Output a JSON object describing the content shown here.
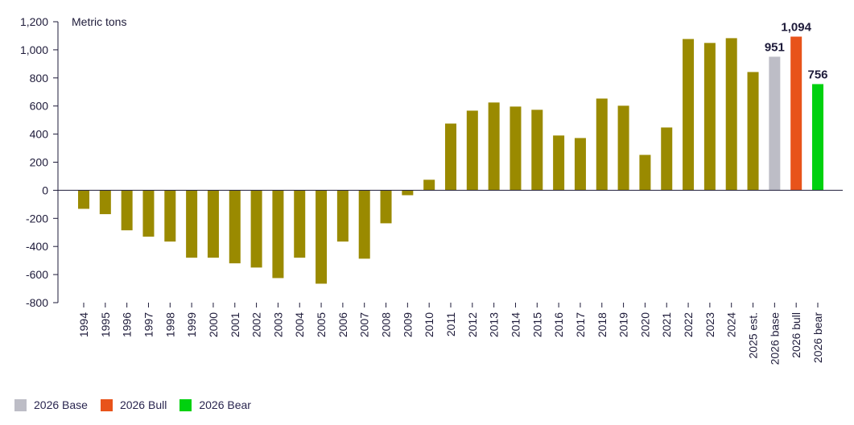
{
  "chart_data": {
    "type": "bar",
    "ylabel": "Metric tons",
    "ylim": [
      -800,
      1200
    ],
    "yticks": [
      1200,
      1000,
      800,
      600,
      400,
      200,
      0,
      -200,
      -400,
      -600,
      -800
    ],
    "ytick_labels": [
      "1,200",
      "1,000",
      "800",
      "600",
      "400",
      "200",
      "0",
      "-200",
      "-400",
      "-600",
      "-800"
    ],
    "grid": false,
    "categories": [
      "1994",
      "1995",
      "1996",
      "1997",
      "1998",
      "1999",
      "2000",
      "2001",
      "2002",
      "2003",
      "2004",
      "2005",
      "2006",
      "2007",
      "2008",
      "2009",
      "2010",
      "2011",
      "2012",
      "2013",
      "2014",
      "2015",
      "2016",
      "2017",
      "2018",
      "2019",
      "2020",
      "2021",
      "2022",
      "2023",
      "2024",
      "2025 est.",
      "2026 base",
      "2026 bull",
      "2026 bear"
    ],
    "values": [
      -132,
      -170,
      -285,
      -330,
      -365,
      -480,
      -480,
      -520,
      -550,
      -625,
      -480,
      -665,
      -365,
      -487,
      -235,
      -35,
      75,
      475,
      567,
      625,
      596,
      573,
      390,
      372,
      653,
      602,
      252,
      447,
      1077,
      1049,
      1083,
      842,
      951,
      1094,
      756
    ],
    "bar_colors": {
      "default": "#9a8a00",
      "2026 base": "#bdbdc6",
      "2026 bull": "#e8531a",
      "2026 bear": "#00d10f"
    },
    "data_labels": {
      "2026 base": "951",
      "2026 bull": "1,094",
      "2026 bear": "756"
    },
    "legend": {
      "placement": "bottom-left",
      "items": [
        {
          "label": "2026 Base",
          "color": "#bdbdc6"
        },
        {
          "label": "2026 Bull",
          "color": "#e8531a"
        },
        {
          "label": "2026 Bear",
          "color": "#00d10f"
        }
      ]
    }
  }
}
